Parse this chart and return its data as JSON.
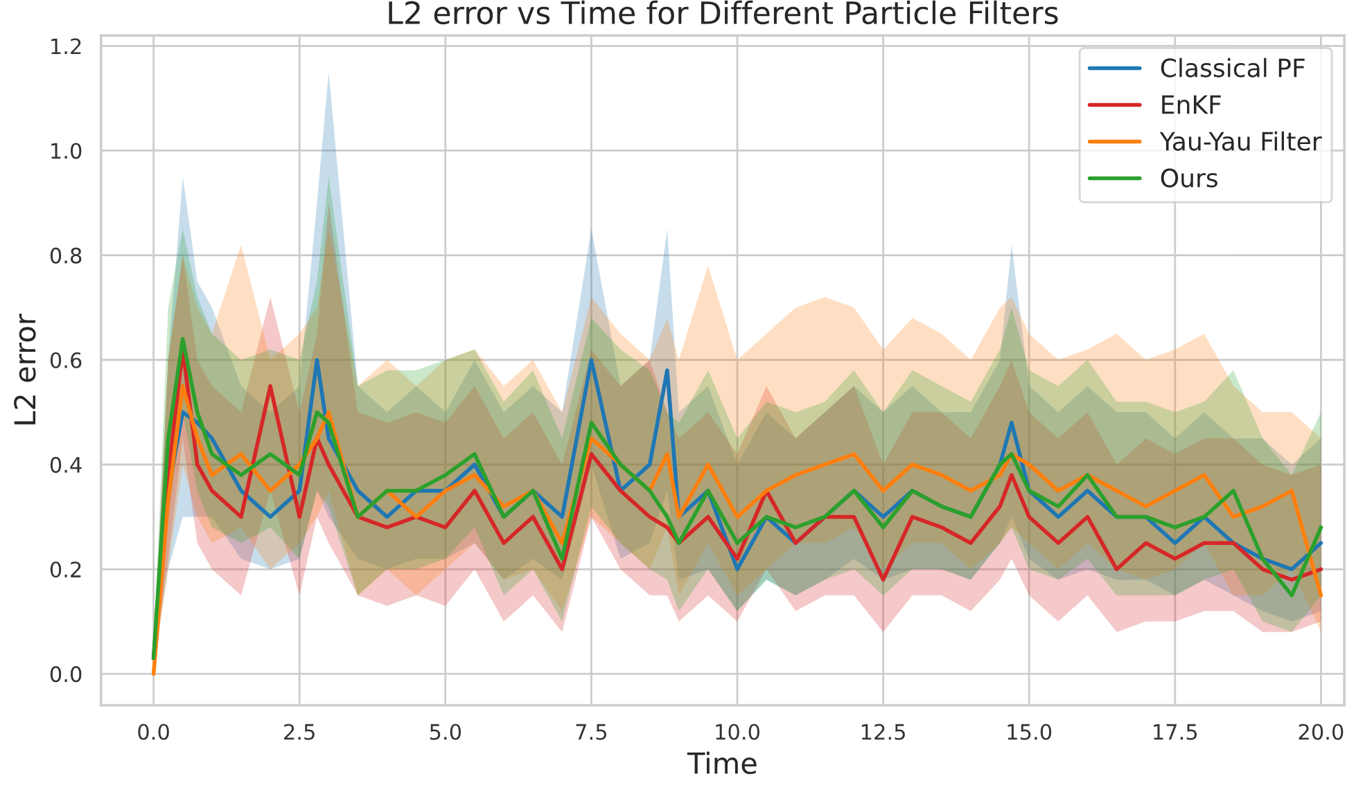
{
  "chart_data": {
    "type": "line",
    "title": "L2 error vs Time for Different Particle Filters",
    "xlabel": "Time",
    "ylabel": "L2 error",
    "x": [
      0,
      0.25,
      0.5,
      0.75,
      1,
      1.5,
      2,
      2.5,
      2.8,
      3,
      3.5,
      4,
      4.5,
      5,
      5.5,
      6,
      6.5,
      7,
      7.5,
      8,
      8.5,
      8.8,
      9,
      9.5,
      10,
      10.5,
      11,
      11.5,
      12,
      12.5,
      13,
      13.5,
      14,
      14.5,
      14.7,
      15,
      15.5,
      16,
      16.5,
      17,
      17.5,
      18,
      18.5,
      19,
      19.5,
      20
    ],
    "series": [
      {
        "name": "Classical PF",
        "color": "#1f77b4",
        "values": [
          0.03,
          0.35,
          0.5,
          0.48,
          0.45,
          0.35,
          0.3,
          0.35,
          0.6,
          0.45,
          0.35,
          0.3,
          0.35,
          0.35,
          0.4,
          0.3,
          0.35,
          0.3,
          0.6,
          0.35,
          0.4,
          0.58,
          0.3,
          0.35,
          0.2,
          0.3,
          0.25,
          0.3,
          0.35,
          0.3,
          0.35,
          0.32,
          0.3,
          0.4,
          0.48,
          0.35,
          0.3,
          0.35,
          0.3,
          0.3,
          0.25,
          0.3,
          0.25,
          0.22,
          0.2,
          0.25
        ],
        "lower": [
          0.02,
          0.2,
          0.3,
          0.3,
          0.3,
          0.22,
          0.2,
          0.22,
          0.35,
          0.3,
          0.22,
          0.2,
          0.22,
          0.22,
          0.25,
          0.18,
          0.22,
          0.18,
          0.4,
          0.22,
          0.25,
          0.35,
          0.18,
          0.2,
          0.12,
          0.18,
          0.15,
          0.18,
          0.22,
          0.18,
          0.2,
          0.2,
          0.18,
          0.25,
          0.3,
          0.22,
          0.18,
          0.2,
          0.18,
          0.18,
          0.15,
          0.18,
          0.15,
          0.12,
          0.1,
          0.12
        ],
        "upper": [
          0.04,
          0.6,
          0.95,
          0.75,
          0.7,
          0.55,
          0.5,
          0.55,
          0.9,
          1.15,
          0.55,
          0.5,
          0.55,
          0.5,
          0.6,
          0.5,
          0.55,
          0.5,
          0.85,
          0.55,
          0.6,
          0.85,
          0.5,
          0.55,
          0.4,
          0.5,
          0.45,
          0.5,
          0.55,
          0.5,
          0.55,
          0.5,
          0.5,
          0.6,
          0.82,
          0.55,
          0.5,
          0.55,
          0.5,
          0.5,
          0.45,
          0.5,
          0.45,
          0.45,
          0.4,
          0.45
        ]
      },
      {
        "name": "EnKF",
        "color": "#d62728",
        "values": [
          0.03,
          0.38,
          0.62,
          0.4,
          0.35,
          0.3,
          0.55,
          0.3,
          0.45,
          0.4,
          0.3,
          0.28,
          0.3,
          0.28,
          0.35,
          0.25,
          0.3,
          0.2,
          0.42,
          0.35,
          0.3,
          0.28,
          0.25,
          0.3,
          0.22,
          0.35,
          0.25,
          0.3,
          0.3,
          0.18,
          0.3,
          0.28,
          0.25,
          0.32,
          0.38,
          0.3,
          0.25,
          0.3,
          0.2,
          0.25,
          0.22,
          0.25,
          0.25,
          0.2,
          0.18,
          0.2
        ],
        "lower": [
          0.02,
          0.22,
          0.45,
          0.25,
          0.2,
          0.15,
          0.35,
          0.15,
          0.3,
          0.25,
          0.15,
          0.13,
          0.15,
          0.13,
          0.2,
          0.1,
          0.15,
          0.08,
          0.3,
          0.2,
          0.15,
          0.15,
          0.1,
          0.15,
          0.1,
          0.2,
          0.12,
          0.15,
          0.15,
          0.08,
          0.15,
          0.15,
          0.12,
          0.18,
          0.22,
          0.15,
          0.1,
          0.15,
          0.08,
          0.1,
          0.1,
          0.12,
          0.12,
          0.08,
          0.08,
          0.1
        ],
        "upper": [
          0.04,
          0.6,
          0.8,
          0.6,
          0.55,
          0.5,
          0.72,
          0.5,
          0.65,
          0.9,
          0.5,
          0.48,
          0.5,
          0.48,
          0.55,
          0.45,
          0.5,
          0.4,
          0.62,
          0.55,
          0.6,
          0.5,
          0.45,
          0.5,
          0.42,
          0.55,
          0.45,
          0.5,
          0.55,
          0.4,
          0.5,
          0.5,
          0.45,
          0.55,
          0.6,
          0.5,
          0.45,
          0.5,
          0.4,
          0.45,
          0.42,
          0.45,
          0.45,
          0.4,
          0.38,
          0.4
        ]
      },
      {
        "name": "Yau-Yau Filter",
        "color": "#ff7f0e",
        "values": [
          0.0,
          0.33,
          0.55,
          0.45,
          0.38,
          0.42,
          0.35,
          0.4,
          0.45,
          0.5,
          0.3,
          0.35,
          0.3,
          0.35,
          0.38,
          0.32,
          0.35,
          0.25,
          0.45,
          0.4,
          0.35,
          0.42,
          0.3,
          0.4,
          0.3,
          0.35,
          0.38,
          0.4,
          0.42,
          0.35,
          0.4,
          0.38,
          0.35,
          0.38,
          0.42,
          0.4,
          0.35,
          0.38,
          0.35,
          0.32,
          0.35,
          0.38,
          0.3,
          0.32,
          0.35,
          0.15
        ],
        "lower": [
          0.0,
          0.2,
          0.4,
          0.3,
          0.25,
          0.28,
          0.2,
          0.25,
          0.3,
          0.35,
          0.15,
          0.2,
          0.15,
          0.2,
          0.25,
          0.18,
          0.2,
          0.12,
          0.3,
          0.25,
          0.2,
          0.28,
          0.15,
          0.25,
          0.15,
          0.2,
          0.25,
          0.25,
          0.28,
          0.2,
          0.25,
          0.25,
          0.2,
          0.25,
          0.28,
          0.25,
          0.2,
          0.25,
          0.2,
          0.18,
          0.2,
          0.25,
          0.15,
          0.15,
          0.2,
          0.08
        ],
        "upper": [
          0.01,
          0.6,
          0.8,
          0.7,
          0.65,
          0.82,
          0.6,
          0.65,
          0.7,
          0.85,
          0.55,
          0.6,
          0.55,
          0.6,
          0.62,
          0.55,
          0.6,
          0.5,
          0.72,
          0.65,
          0.6,
          0.68,
          0.6,
          0.78,
          0.6,
          0.65,
          0.7,
          0.72,
          0.7,
          0.62,
          0.68,
          0.65,
          0.6,
          0.7,
          0.72,
          0.65,
          0.6,
          0.62,
          0.65,
          0.6,
          0.62,
          0.65,
          0.55,
          0.5,
          0.5,
          0.45
        ]
      },
      {
        "name": "Ours",
        "color": "#2ca02c",
        "values": [
          0.03,
          0.45,
          0.64,
          0.5,
          0.42,
          0.38,
          0.42,
          0.38,
          0.5,
          0.48,
          0.3,
          0.35,
          0.35,
          0.38,
          0.42,
          0.3,
          0.35,
          0.22,
          0.48,
          0.4,
          0.35,
          0.3,
          0.25,
          0.35,
          0.25,
          0.3,
          0.28,
          0.3,
          0.35,
          0.28,
          0.35,
          0.32,
          0.3,
          0.4,
          0.42,
          0.35,
          0.32,
          0.38,
          0.3,
          0.3,
          0.28,
          0.3,
          0.35,
          0.22,
          0.15,
          0.28
        ],
        "lower": [
          0.02,
          0.3,
          0.5,
          0.35,
          0.28,
          0.25,
          0.28,
          0.22,
          0.35,
          0.32,
          0.15,
          0.2,
          0.2,
          0.22,
          0.28,
          0.15,
          0.2,
          0.1,
          0.32,
          0.25,
          0.2,
          0.18,
          0.12,
          0.2,
          0.12,
          0.18,
          0.15,
          0.18,
          0.2,
          0.15,
          0.2,
          0.2,
          0.18,
          0.25,
          0.28,
          0.2,
          0.18,
          0.22,
          0.15,
          0.15,
          0.15,
          0.18,
          0.2,
          0.1,
          0.08,
          0.15
        ],
        "upper": [
          0.04,
          0.7,
          0.85,
          0.72,
          0.65,
          0.6,
          0.62,
          0.6,
          0.75,
          0.95,
          0.55,
          0.58,
          0.58,
          0.6,
          0.62,
          0.52,
          0.58,
          0.45,
          0.68,
          0.62,
          0.58,
          0.5,
          0.48,
          0.58,
          0.45,
          0.52,
          0.5,
          0.52,
          0.58,
          0.5,
          0.58,
          0.55,
          0.52,
          0.62,
          0.7,
          0.58,
          0.55,
          0.6,
          0.52,
          0.52,
          0.5,
          0.52,
          0.58,
          0.45,
          0.38,
          0.5
        ]
      }
    ],
    "xlim": [
      -0.9,
      20.4
    ],
    "ylim": [
      -0.06,
      1.22
    ],
    "xticks": [
      {
        "value": 0,
        "label": "0.0"
      },
      {
        "value": 2.5,
        "label": "2.5"
      },
      {
        "value": 5,
        "label": "5.0"
      },
      {
        "value": 7.5,
        "label": "7.5"
      },
      {
        "value": 10,
        "label": "10.0"
      },
      {
        "value": 12.5,
        "label": "12.5"
      },
      {
        "value": 15,
        "label": "15.0"
      },
      {
        "value": 17.5,
        "label": "17.5"
      },
      {
        "value": 20,
        "label": "20.0"
      }
    ],
    "yticks": [
      {
        "value": 0,
        "label": "0.0"
      },
      {
        "value": 0.2,
        "label": "0.2"
      },
      {
        "value": 0.4,
        "label": "0.4"
      },
      {
        "value": 0.6,
        "label": "0.6"
      },
      {
        "value": 0.8,
        "label": "0.8"
      },
      {
        "value": 1,
        "label": "1.0"
      },
      {
        "value": 1.2,
        "label": "1.2"
      }
    ],
    "grid": true,
    "legend": "top right"
  }
}
